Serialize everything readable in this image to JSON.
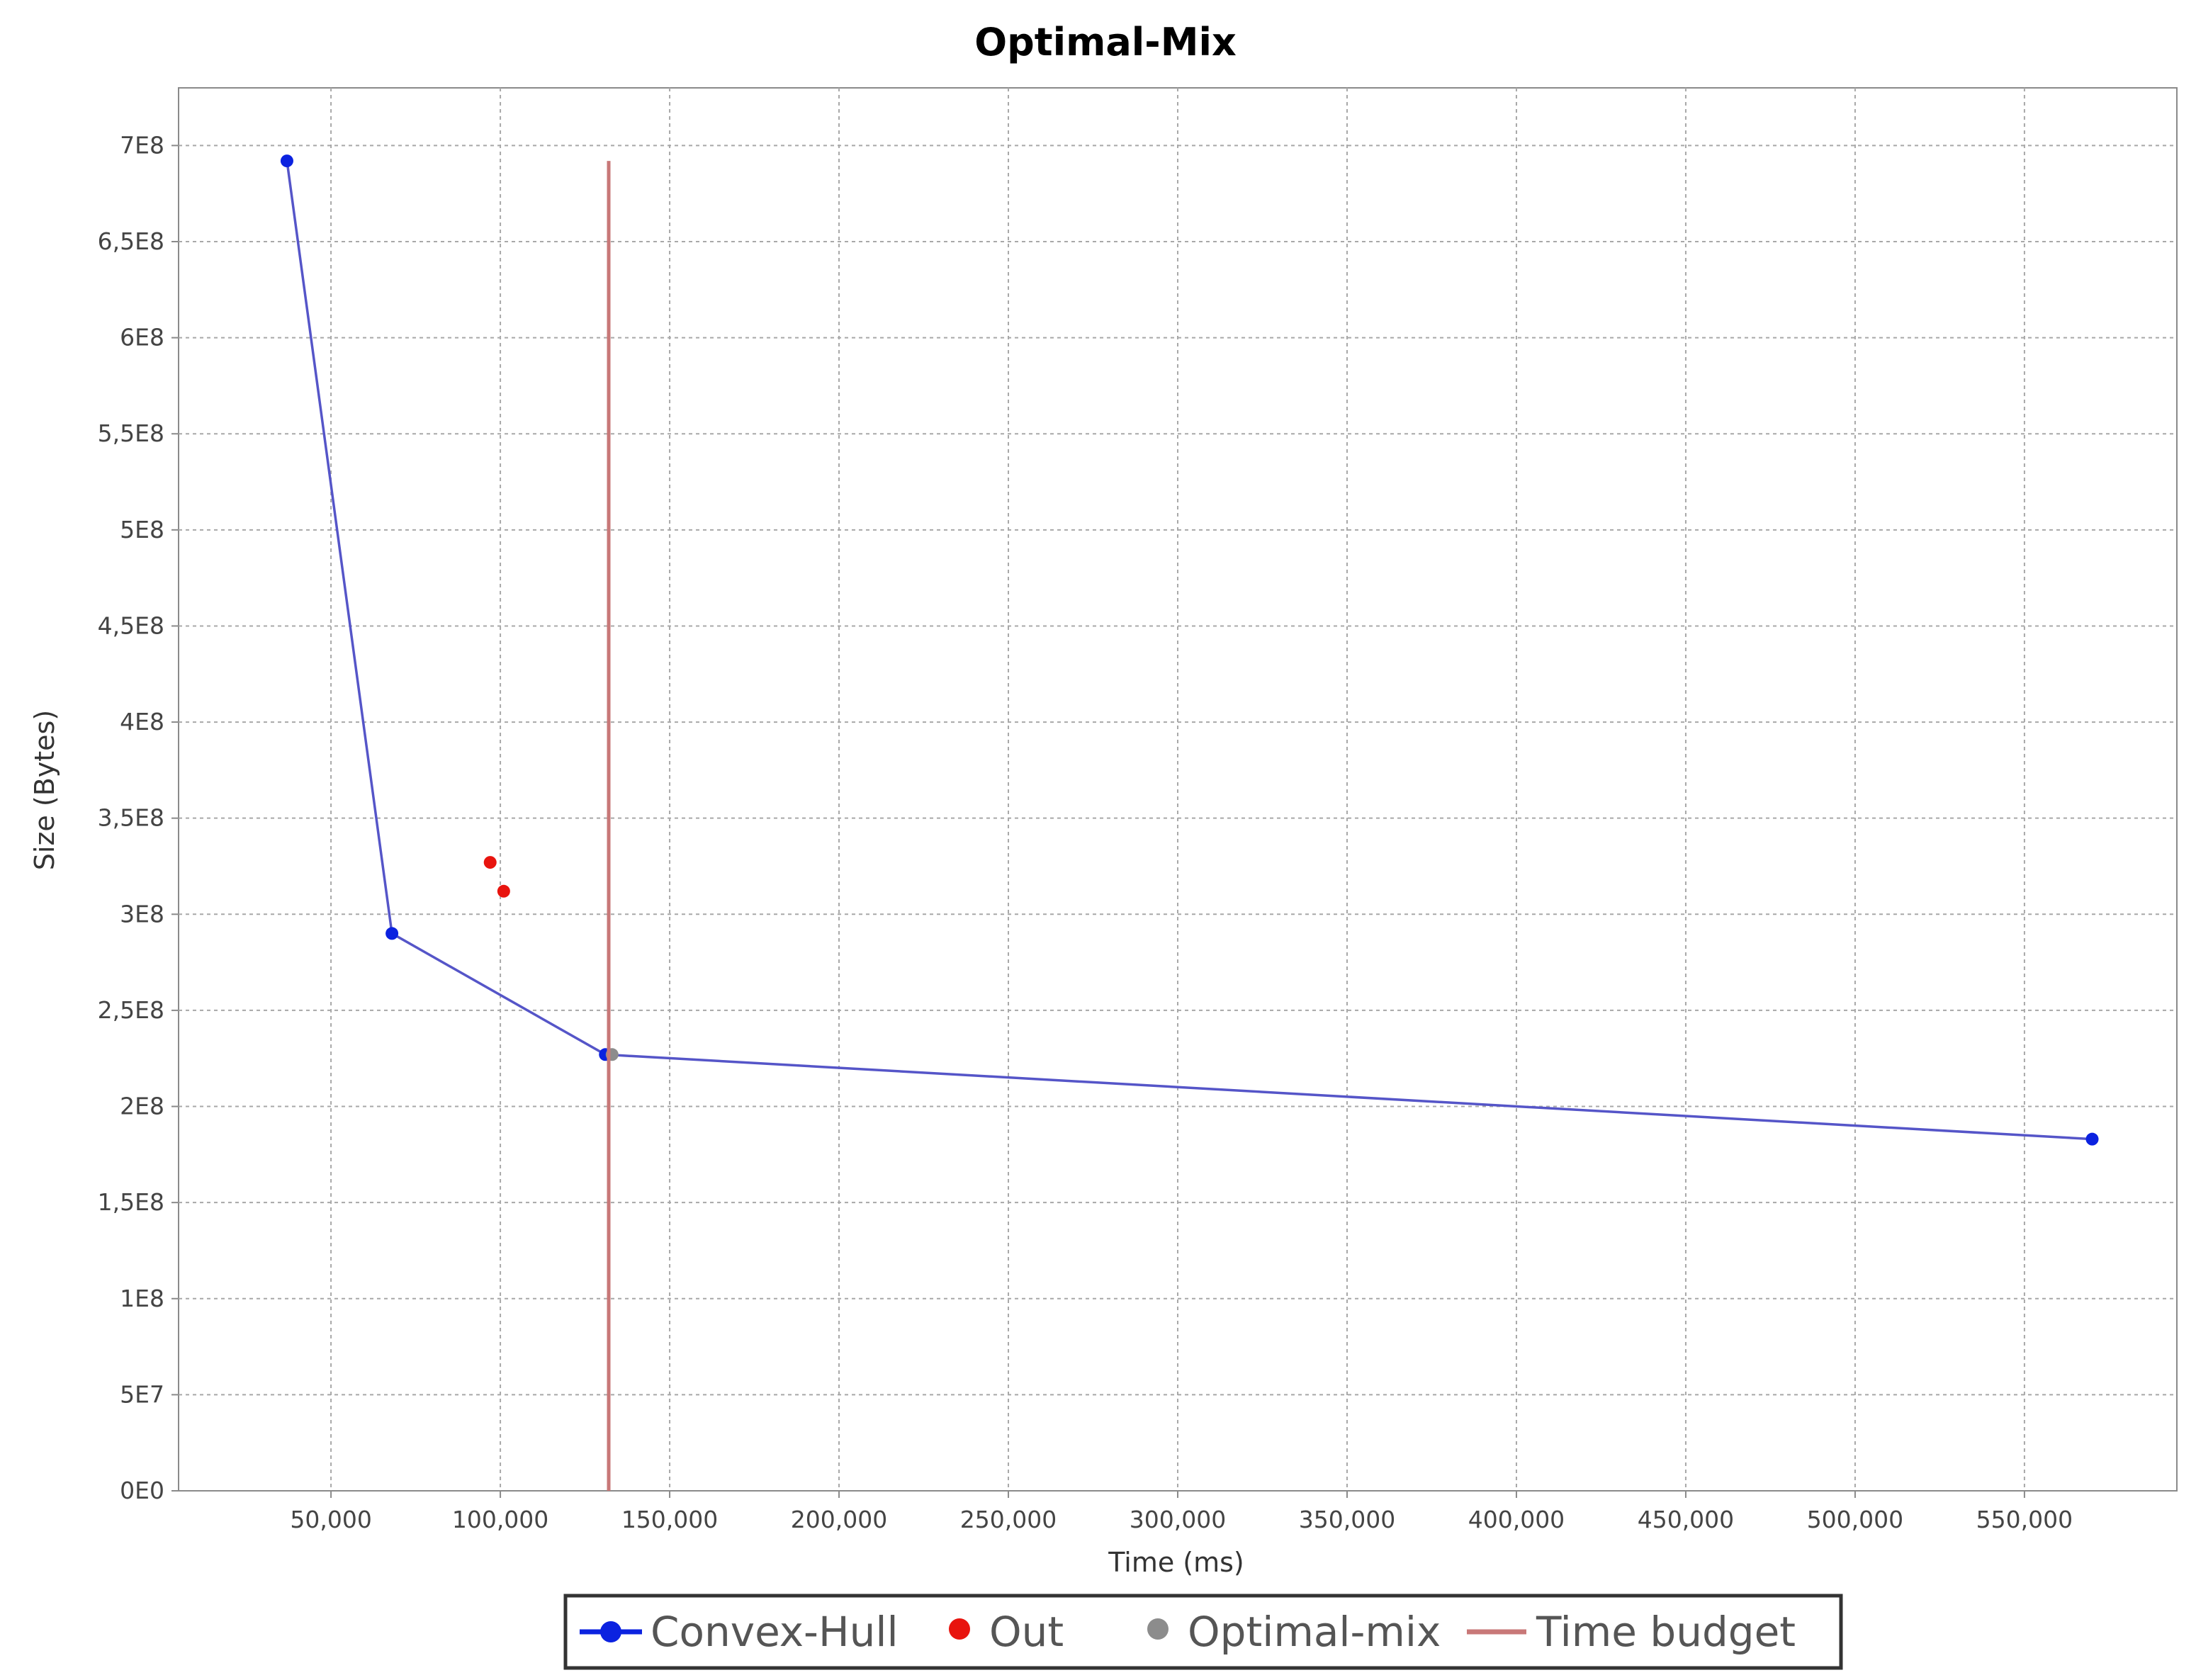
{
  "chart_data": {
    "type": "scatter",
    "title": "Optimal-Mix",
    "xlabel": "Time (ms)",
    "ylabel": "Size (Bytes)",
    "xlim": [
      5000,
      595000
    ],
    "ylim": [
      0,
      730000000
    ],
    "x_ticks": [
      {
        "value": 50000,
        "label": "50,000"
      },
      {
        "value": 100000,
        "label": "100,000"
      },
      {
        "value": 150000,
        "label": "150,000"
      },
      {
        "value": 200000,
        "label": "200,000"
      },
      {
        "value": 250000,
        "label": "250,000"
      },
      {
        "value": 300000,
        "label": "300,000"
      },
      {
        "value": 350000,
        "label": "350,000"
      },
      {
        "value": 400000,
        "label": "400,000"
      },
      {
        "value": 450000,
        "label": "450,000"
      },
      {
        "value": 500000,
        "label": "500,000"
      },
      {
        "value": 550000,
        "label": "550,000"
      }
    ],
    "y_ticks": [
      {
        "value": 0,
        "label": "0E0"
      },
      {
        "value": 50000000,
        "label": "5E7"
      },
      {
        "value": 100000000,
        "label": "1E8"
      },
      {
        "value": 150000000,
        "label": "1,5E8"
      },
      {
        "value": 200000000,
        "label": "2E8"
      },
      {
        "value": 250000000,
        "label": "2,5E8"
      },
      {
        "value": 300000000,
        "label": "3E8"
      },
      {
        "value": 350000000,
        "label": "3,5E8"
      },
      {
        "value": 400000000,
        "label": "4E8"
      },
      {
        "value": 450000000,
        "label": "4,5E8"
      },
      {
        "value": 500000000,
        "label": "5E8"
      },
      {
        "value": 550000000,
        "label": "5,5E8"
      },
      {
        "value": 600000000,
        "label": "6E8"
      },
      {
        "value": 650000000,
        "label": "6,5E8"
      },
      {
        "value": 700000000,
        "label": "7E8"
      }
    ],
    "grid": true,
    "legend_position": "bottom",
    "series": [
      {
        "name": "Convex-Hull",
        "kind": "line-markers",
        "color": "#0b22e0",
        "line_color": "#5555c8",
        "points": [
          {
            "x": 37000,
            "y": 692000000
          },
          {
            "x": 68000,
            "y": 290000000
          },
          {
            "x": 131000,
            "y": 227000000
          },
          {
            "x": 570000,
            "y": 183000000
          }
        ]
      },
      {
        "name": "Out",
        "kind": "markers",
        "color": "#e8140e",
        "points": [
          {
            "x": 97000,
            "y": 327000000
          },
          {
            "x": 101000,
            "y": 312000000
          }
        ]
      },
      {
        "name": "Optimal-mix",
        "kind": "markers",
        "color": "#8c8c8c",
        "points": [
          {
            "x": 133000,
            "y": 227000000
          }
        ]
      },
      {
        "name": "Time budget",
        "kind": "vertical-line",
        "color": "#c87878",
        "x": 132000,
        "y_range": [
          0,
          692000000
        ]
      }
    ]
  }
}
